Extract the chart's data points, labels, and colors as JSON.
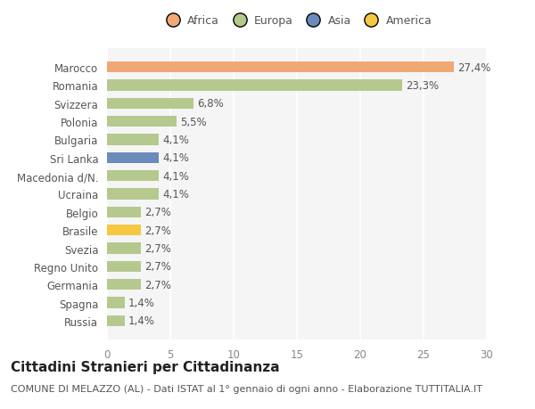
{
  "categories": [
    "Russia",
    "Spagna",
    "Germania",
    "Regno Unito",
    "Svezia",
    "Brasile",
    "Belgio",
    "Ucraina",
    "Macedonia d/N.",
    "Sri Lanka",
    "Bulgaria",
    "Polonia",
    "Svizzera",
    "Romania",
    "Marocco"
  ],
  "values": [
    1.4,
    1.4,
    2.7,
    2.7,
    2.7,
    2.7,
    2.7,
    4.1,
    4.1,
    4.1,
    4.1,
    5.5,
    6.8,
    23.3,
    27.4
  ],
  "colors": [
    "#b5c98e",
    "#b5c98e",
    "#b5c98e",
    "#b5c98e",
    "#b5c98e",
    "#f5c842",
    "#b5c98e",
    "#b5c98e",
    "#b5c98e",
    "#6b8cba",
    "#b5c98e",
    "#b5c98e",
    "#b5c98e",
    "#b5c98e",
    "#f0a875"
  ],
  "labels": [
    "1,4%",
    "1,4%",
    "2,7%",
    "2,7%",
    "2,7%",
    "2,7%",
    "2,7%",
    "4,1%",
    "4,1%",
    "4,1%",
    "4,1%",
    "5,5%",
    "6,8%",
    "23,3%",
    "27,4%"
  ],
  "legend_labels": [
    "Africa",
    "Europa",
    "Asia",
    "America"
  ],
  "legend_colors": [
    "#f0a875",
    "#b5c98e",
    "#6b8cba",
    "#f5c842"
  ],
  "title": "Cittadini Stranieri per Cittadinanza",
  "subtitle": "COMUNE DI MELAZZO (AL) - Dati ISTAT al 1° gennaio di ogni anno - Elaborazione TUTTITALIA.IT",
  "xlim": [
    0,
    30
  ],
  "xticks": [
    0,
    5,
    10,
    15,
    20,
    25,
    30
  ],
  "bg_color": "#ffffff",
  "plot_bg_color": "#f5f5f5",
  "grid_color": "#ffffff",
  "bar_height": 0.6,
  "label_fontsize": 8.5,
  "tick_fontsize": 8.5,
  "title_fontsize": 11,
  "subtitle_fontsize": 8
}
